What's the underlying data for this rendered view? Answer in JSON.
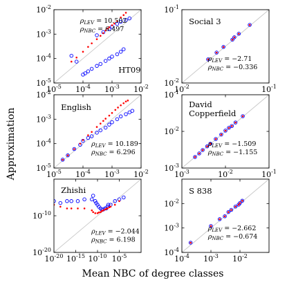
{
  "figure": {
    "xlabel": "Mean NBC of degree classes",
    "ylabel": "Approximation",
    "colors": {
      "lev": "#ff0000",
      "nbc": "#0000ff",
      "diag": "#c8c8c8"
    }
  },
  "chart_data": [
    {
      "type": "scatter",
      "name": "HT09",
      "scale": "log",
      "xlim": [
        1e-05,
        0.01
      ],
      "ylim": [
        1e-05,
        0.01
      ],
      "xticks": [
        {
          "v": 1e-05,
          "b": "10",
          "e": "-5"
        },
        {
          "v": 0.0001,
          "b": "10",
          "e": "-4"
        },
        {
          "v": 0.001,
          "b": "10",
          "e": "-3"
        },
        {
          "v": 0.01,
          "b": "10",
          "e": "-2"
        }
      ],
      "yticks": [
        {
          "v": 1e-05,
          "b": "10",
          "e": "-5"
        },
        {
          "v": 0.0001,
          "b": "10",
          "e": "-4"
        },
        {
          "v": 0.001,
          "b": "10",
          "e": "-3"
        },
        {
          "v": 0.01,
          "b": "10",
          "e": "-2"
        }
      ],
      "ann": [
        {
          "sym": "ρ",
          "sub": "LEV",
          "val": " = 10.502"
        },
        {
          "sym": "ρ",
          "sub": "NBC",
          "val": " = 6.497"
        }
      ],
      "lev": [
        [
          4e-05,
          7.5e-05
        ],
        [
          6e-05,
          0.00011
        ],
        [
          0.0001,
          0.00019
        ],
        [
          0.00015,
          0.0003
        ],
        [
          0.0002,
          0.00042
        ],
        [
          0.0003,
          0.00062
        ],
        [
          0.0004,
          0.00085
        ],
        [
          0.0005,
          0.0011
        ],
        [
          0.0006,
          0.0014
        ],
        [
          0.0007,
          0.0017
        ],
        [
          0.0008,
          0.0019
        ],
        [
          0.001,
          0.0023
        ],
        [
          0.0012,
          0.0027
        ],
        [
          0.0015,
          0.0034
        ],
        [
          0.002,
          0.0048
        ],
        [
          0.0025,
          0.006
        ],
        [
          0.003,
          0.0075
        ]
      ],
      "nbc": [
        [
          4e-05,
          0.00013
        ],
        [
          6e-05,
          7.5e-05
        ],
        [
          0.0001,
          2.2e-05
        ],
        [
          0.00012,
          2.5e-05
        ],
        [
          0.00015,
          3e-05
        ],
        [
          0.0002,
          3.8e-05
        ],
        [
          0.0003,
          5e-05
        ],
        [
          0.0004,
          6e-05
        ],
        [
          0.0006,
          8e-05
        ],
        [
          0.0008,
          0.0001
        ],
        [
          0.001,
          0.00012
        ],
        [
          0.0015,
          0.00015
        ],
        [
          0.002,
          0.00019
        ],
        [
          0.0025,
          0.00024
        ],
        [
          0.0003,
          0.0009
        ],
        [
          0.0005,
          0.0012
        ],
        [
          0.0008,
          0.0016
        ],
        [
          0.001,
          0.002
        ],
        [
          0.0015,
          0.0026
        ],
        [
          0.002,
          0.0032
        ],
        [
          0.003,
          0.0038
        ],
        [
          0.004,
          0.0044
        ]
      ]
    },
    {
      "type": "scatter",
      "name": "Social 3",
      "scale": "log",
      "xlim": [
        0.01,
        0.1
      ],
      "ylim": [
        0.01,
        0.1
      ],
      "xticks": [
        {
          "v": 0.01,
          "b": "10",
          "e": "-2"
        },
        {
          "v": 0.1,
          "b": "10",
          "e": "-1"
        }
      ],
      "yticks": [
        {
          "v": 0.01,
          "b": "10",
          "e": "-2"
        },
        {
          "v": 0.1,
          "b": "10",
          "e": "-1"
        }
      ],
      "ann": [
        {
          "sym": "ρ",
          "sub": "LEV",
          "val": " = −2.71"
        },
        {
          "sym": "ρ",
          "sub": "NBC",
          "val": " = −0.336"
        }
      ],
      "lev": [
        [
          0.02,
          0.021
        ],
        [
          0.025,
          0.026
        ],
        [
          0.03,
          0.031
        ],
        [
          0.038,
          0.039
        ],
        [
          0.04,
          0.042
        ],
        [
          0.045,
          0.047
        ],
        [
          0.06,
          0.062
        ]
      ],
      "nbc": [
        [
          0.02,
          0.021
        ],
        [
          0.025,
          0.026
        ],
        [
          0.03,
          0.031
        ],
        [
          0.038,
          0.039
        ],
        [
          0.04,
          0.042
        ],
        [
          0.045,
          0.047
        ],
        [
          0.06,
          0.062
        ]
      ]
    },
    {
      "type": "scatter",
      "name": "English",
      "scale": "log",
      "xlim": [
        1e-05,
        0.01
      ],
      "ylim": [
        1e-05,
        0.01
      ],
      "xticks": [
        {
          "v": 1e-05,
          "b": "10",
          "e": "-5"
        },
        {
          "v": 0.0001,
          "b": "10",
          "e": "-4"
        },
        {
          "v": 0.001,
          "b": "10",
          "e": "-3"
        },
        {
          "v": 0.01,
          "b": "10",
          "e": "-2"
        }
      ],
      "yticks": [
        {
          "v": 1e-05,
          "b": "10",
          "e": "-5"
        },
        {
          "v": 0.0001,
          "b": "10",
          "e": "-4"
        },
        {
          "v": 0.001,
          "b": "10",
          "e": "-3"
        },
        {
          "v": 0.01,
          "b": "10",
          "e": "-2"
        }
      ],
      "ann": [
        {
          "sym": "ρ",
          "sub": "LEV",
          "val": " = 10.189"
        },
        {
          "sym": "ρ",
          "sub": "NBC",
          "val": " = 6.296"
        }
      ],
      "lev": [
        [
          2e-05,
          2.2e-05
        ],
        [
          3e-05,
          3.3e-05
        ],
        [
          5e-05,
          6e-05
        ],
        [
          8e-05,
          0.0001
        ],
        [
          0.0001,
          0.00014
        ],
        [
          0.00015,
          0.00022
        ],
        [
          0.0002,
          0.0003
        ],
        [
          0.0003,
          0.00048
        ],
        [
          0.0004,
          0.00066
        ],
        [
          0.0005,
          0.00085
        ],
        [
          0.0006,
          0.00105
        ],
        [
          0.0008,
          0.0014
        ],
        [
          0.001,
          0.0018
        ],
        [
          0.0013,
          0.0024
        ],
        [
          0.0016,
          0.003
        ],
        [
          0.002,
          0.0037
        ],
        [
          0.0025,
          0.0045
        ],
        [
          0.003,
          0.0053
        ],
        [
          0.0035,
          0.0058
        ]
      ],
      "nbc": [
        [
          2e-05,
          2.2e-05
        ],
        [
          3e-05,
          3.3e-05
        ],
        [
          5e-05,
          6e-05
        ],
        [
          8e-05,
          9e-05
        ],
        [
          0.0001,
          0.00013
        ],
        [
          0.00015,
          0.00017
        ],
        [
          0.0002,
          0.0002
        ],
        [
          0.0003,
          0.00028
        ],
        [
          0.0004,
          0.00035
        ],
        [
          0.0006,
          0.00045
        ],
        [
          0.0008,
          0.0006
        ],
        [
          0.001,
          0.00075
        ],
        [
          0.0015,
          0.001
        ],
        [
          0.002,
          0.0013
        ],
        [
          0.003,
          0.0016
        ],
        [
          0.004,
          0.0019
        ],
        [
          0.005,
          0.0022
        ]
      ]
    },
    {
      "type": "scatter",
      "name": "David Copperfield",
      "name_lines": [
        "David",
        "Copperfield"
      ],
      "scale": "log",
      "xlim": [
        0.001,
        0.1
      ],
      "ylim": [
        0.001,
        0.1
      ],
      "xticks": [
        {
          "v": 0.001,
          "b": "10",
          "e": "-3"
        },
        {
          "v": 0.01,
          "b": "10",
          "e": "-2"
        },
        {
          "v": 0.1,
          "b": "10",
          "e": "-1"
        }
      ],
      "yticks": [
        {
          "v": 0.001,
          "b": "10",
          "e": "-3"
        },
        {
          "v": 0.01,
          "b": "10",
          "e": "-2"
        },
        {
          "v": 0.1,
          "b": "10",
          "e": "-1"
        }
      ],
      "ann": [
        {
          "sym": "ρ",
          "sub": "LEV",
          "val": " = −1.509"
        },
        {
          "sym": "ρ",
          "sub": "NBC",
          "val": " = −1.155"
        }
      ],
      "lev": [
        [
          0.002,
          0.002
        ],
        [
          0.0025,
          0.0025
        ],
        [
          0.003,
          0.0031
        ],
        [
          0.0038,
          0.0039
        ],
        [
          0.0045,
          0.0046
        ],
        [
          0.006,
          0.0062
        ],
        [
          0.008,
          0.0082
        ],
        [
          0.01,
          0.0105
        ],
        [
          0.012,
          0.0125
        ],
        [
          0.014,
          0.014
        ],
        [
          0.017,
          0.0175
        ],
        [
          0.025,
          0.026
        ]
      ],
      "nbc": [
        [
          0.002,
          0.002
        ],
        [
          0.0025,
          0.0025
        ],
        [
          0.003,
          0.0031
        ],
        [
          0.0038,
          0.0039
        ],
        [
          0.0045,
          0.0046
        ],
        [
          0.006,
          0.0062
        ],
        [
          0.008,
          0.0082
        ],
        [
          0.01,
          0.0105
        ],
        [
          0.012,
          0.0125
        ],
        [
          0.014,
          0.014
        ],
        [
          0.017,
          0.0175
        ],
        [
          0.025,
          0.026
        ]
      ]
    },
    {
      "type": "scatter",
      "name": "Zhishi",
      "scale": "log",
      "xlim": [
        1e-20,
        1
      ],
      "ylim": [
        1e-20,
        1
      ],
      "xticks": [
        {
          "v": 1e-20,
          "b": "10",
          "e": "-20"
        },
        {
          "v": 1e-15,
          "b": "10",
          "e": "-15"
        },
        {
          "v": 1e-10,
          "b": "10",
          "e": "-10"
        },
        {
          "v": 1e-05,
          "b": "10",
          "e": "-5"
        }
      ],
      "yticks": [
        {
          "v": 1e-20,
          "b": "10",
          "e": "-20"
        },
        {
          "v": 1e-10,
          "b": "10",
          "e": "-10"
        }
      ],
      "ann": [
        {
          "sym": "ρ",
          "sub": "LEV",
          "val": " = −2.044"
        },
        {
          "sym": "ρ",
          "sub": "NBC",
          "val": " = 6.198"
        }
      ],
      "lev": [
        [
          1e-20,
          1e-07
        ],
        [
          3e-19,
          3e-08
        ],
        [
          1e-17,
          1e-08
        ],
        [
          1e-16,
          1e-08
        ],
        [
          3e-15,
          1e-08
        ],
        [
          1e-13,
          1e-08
        ],
        [
          5e-12,
          3e-09
        ],
        [
          1e-11,
          1e-09
        ],
        [
          3e-11,
          5e-10
        ],
        [
          1e-10,
          5e-10
        ],
        [
          2e-10,
          8e-10
        ],
        [
          5e-10,
          1e-09
        ],
        [
          1e-09,
          2e-09
        ],
        [
          2e-09,
          3e-09
        ],
        [
          5e-09,
          5e-09
        ],
        [
          1e-08,
          8e-09
        ],
        [
          2e-08,
          1e-08
        ],
        [
          5e-08,
          2e-08
        ],
        [
          1e-07,
          3e-08
        ],
        [
          1e-06,
          1e-07
        ],
        [
          1e-05,
          1e-06
        ]
      ],
      "nbc": [
        [
          1e-20,
          1e-06
        ],
        [
          3e-19,
          3e-07
        ],
        [
          1e-17,
          1e-06
        ],
        [
          1e-16,
          1e-06
        ],
        [
          3e-15,
          1e-06
        ],
        [
          1e-13,
          3e-06
        ],
        [
          5e-12,
          3e-06
        ],
        [
          1e-11,
          3e-05
        ],
        [
          3e-11,
          1e-06
        ],
        [
          5e-11,
          3e-07
        ],
        [
          1e-10,
          1e-07
        ],
        [
          2e-10,
          3e-08
        ],
        [
          5e-10,
          1e-08
        ],
        [
          1e-09,
          5e-09
        ],
        [
          2e-09,
          5e-09
        ],
        [
          5e-09,
          1e-08
        ],
        [
          1e-08,
          1e-08
        ],
        [
          2e-08,
          3e-08
        ],
        [
          3e-08,
          1e-07
        ],
        [
          1e-07,
          1e-07
        ],
        [
          1e-06,
          1e-06
        ],
        [
          1e-05,
          3e-06
        ],
        [
          0.0001,
          1e-05
        ]
      ]
    },
    {
      "type": "scatter",
      "name": "S 838",
      "scale": "log",
      "xlim": [
        0.0001,
        0.1
      ],
      "ylim": [
        0.0001,
        0.1
      ],
      "xticks": [
        {
          "v": 0.0001,
          "b": "10",
          "e": "-4"
        },
        {
          "v": 0.001,
          "b": "10",
          "e": "-3"
        },
        {
          "v": 0.01,
          "b": "10",
          "e": "-2"
        }
      ],
      "yticks": [
        {
          "v": 0.0001,
          "b": "10",
          "e": "-4"
        },
        {
          "v": 0.001,
          "b": "10",
          "e": "-3"
        },
        {
          "v": 0.01,
          "b": "10",
          "e": "-2"
        }
      ],
      "ann": [
        {
          "sym": "ρ",
          "sub": "LEV",
          "val": " = −2.662"
        },
        {
          "sym": "ρ",
          "sub": "NBC",
          "val": " = −0.674"
        }
      ],
      "lev": [
        [
          0.0002,
          0.00025
        ],
        [
          0.001,
          0.0012
        ],
        [
          0.002,
          0.0023
        ],
        [
          0.003,
          0.003
        ],
        [
          0.004,
          0.0045
        ],
        [
          0.005,
          0.0055
        ],
        [
          0.007,
          0.0075
        ],
        [
          0.009,
          0.009
        ],
        [
          0.01,
          0.0105
        ],
        [
          0.012,
          0.013
        ]
      ],
      "nbc": [
        [
          0.0002,
          0.00025
        ],
        [
          0.001,
          0.0012
        ],
        [
          0.002,
          0.0023
        ],
        [
          0.003,
          0.003
        ],
        [
          0.004,
          0.0045
        ],
        [
          0.005,
          0.0055
        ],
        [
          0.007,
          0.0075
        ],
        [
          0.009,
          0.009
        ],
        [
          0.01,
          0.0105
        ],
        [
          0.012,
          0.013
        ]
      ]
    }
  ]
}
